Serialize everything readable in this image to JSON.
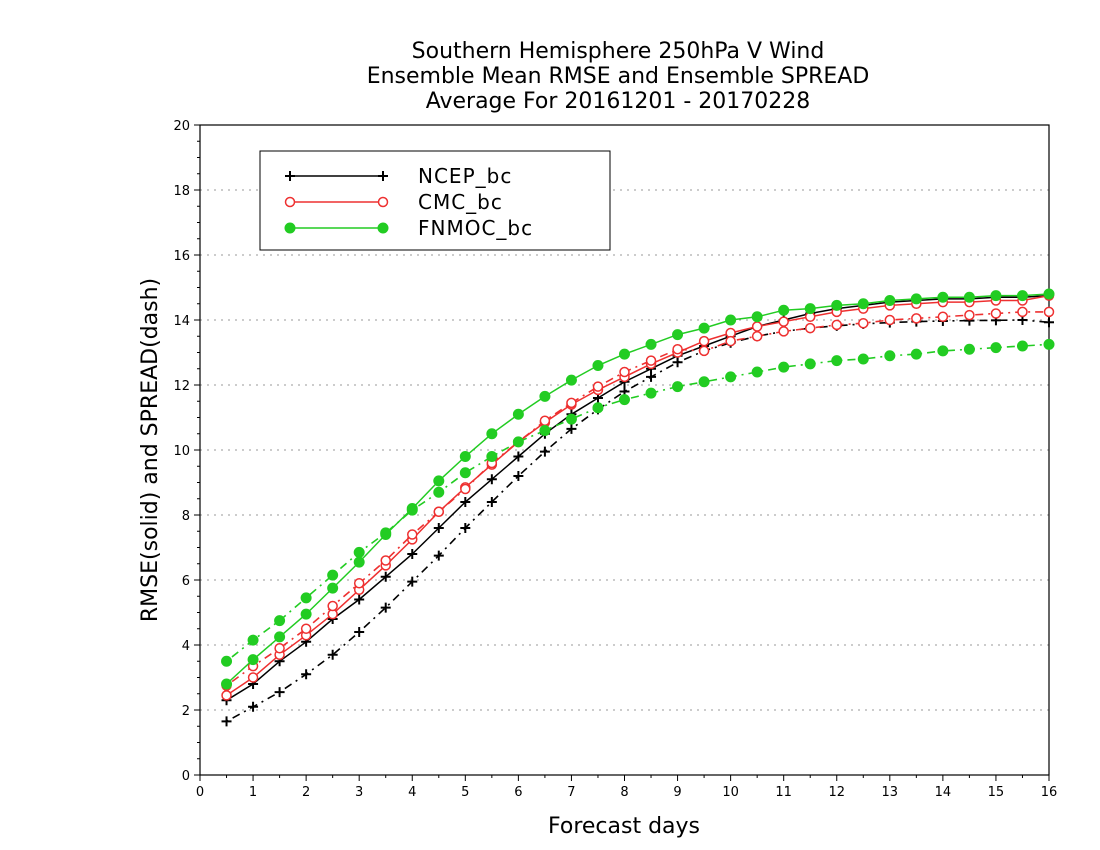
{
  "chart_data": {
    "type": "line",
    "title": [
      "Southern Hemisphere 250hPa V Wind",
      "Ensemble Mean RMSE and Ensemble SPREAD",
      "Average For 20161201 - 20170228"
    ],
    "xlabel": "Forecast days",
    "ylabel": "RMSE(solid) and SPREAD(dash)",
    "xlim": [
      0,
      16
    ],
    "ylim": [
      0,
      20
    ],
    "xticks": [
      "0",
      "1",
      "2",
      "3",
      "4",
      "5",
      "6",
      "7",
      "8",
      "9",
      "10",
      "11",
      "12",
      "13",
      "14",
      "15",
      "16"
    ],
    "yticks": [
      "0",
      "2",
      "4",
      "6",
      "8",
      "10",
      "12",
      "14",
      "16",
      "18",
      "20"
    ],
    "grid": "horizontal dotted",
    "legend_position": "top-left",
    "x": [
      0.5,
      1,
      1.5,
      2,
      2.5,
      3,
      3.5,
      4,
      4.5,
      5,
      5.5,
      6,
      6.5,
      7,
      7.5,
      8,
      8.5,
      9,
      9.5,
      10,
      10.5,
      11,
      11.5,
      12,
      12.5,
      13,
      13.5,
      14,
      14.5,
      15,
      15.5,
      16
    ],
    "series": [
      {
        "name": "NCEP_bc",
        "metric": "rmse",
        "style": "solid",
        "marker": "plus",
        "color": "#000000",
        "values": [
          2.3,
          2.8,
          3.5,
          4.1,
          4.8,
          5.4,
          6.1,
          6.8,
          7.6,
          8.4,
          9.1,
          9.8,
          10.5,
          11.1,
          11.6,
          12.1,
          12.5,
          12.9,
          13.2,
          13.5,
          13.8,
          14.0,
          14.2,
          14.35,
          14.45,
          14.55,
          14.6,
          14.65,
          14.65,
          14.7,
          14.7,
          14.75
        ]
      },
      {
        "name": "NCEP_bc",
        "metric": "spread",
        "style": "dash",
        "marker": "plus",
        "color": "#000000",
        "values": [
          1.65,
          2.1,
          2.55,
          3.1,
          3.7,
          4.4,
          5.15,
          5.95,
          6.75,
          7.6,
          8.4,
          9.2,
          9.95,
          10.65,
          11.25,
          11.8,
          12.25,
          12.7,
          13.05,
          13.3,
          13.5,
          13.65,
          13.75,
          13.82,
          13.88,
          13.92,
          13.95,
          13.97,
          13.98,
          13.99,
          14.0,
          13.93
        ]
      },
      {
        "name": "CMC_bc",
        "metric": "rmse",
        "style": "solid",
        "marker": "circle-open",
        "color": "#ee3030",
        "values": [
          2.45,
          3.0,
          3.7,
          4.3,
          4.95,
          5.7,
          6.45,
          7.25,
          8.1,
          8.85,
          9.55,
          10.25,
          10.85,
          11.4,
          11.85,
          12.25,
          12.65,
          13.0,
          13.35,
          13.6,
          13.8,
          13.95,
          14.1,
          14.25,
          14.35,
          14.45,
          14.5,
          14.55,
          14.55,
          14.6,
          14.6,
          14.75
        ]
      },
      {
        "name": "CMC_bc",
        "metric": "spread",
        "style": "dash",
        "marker": "circle-open",
        "color": "#ee3030",
        "values": [
          2.75,
          3.35,
          3.9,
          4.5,
          5.2,
          5.9,
          6.6,
          7.4,
          8.1,
          8.8,
          9.6,
          10.25,
          10.9,
          11.45,
          11.95,
          12.4,
          12.75,
          13.1,
          13.05,
          13.35,
          13.5,
          13.65,
          13.75,
          13.85,
          13.9,
          14.0,
          14.05,
          14.1,
          14.15,
          14.2,
          14.25,
          14.25
        ]
      },
      {
        "name": "FNMOC_bc",
        "metric": "rmse",
        "style": "solid",
        "marker": "circle-filled",
        "color": "#22cc22",
        "values": [
          2.8,
          3.55,
          4.25,
          4.95,
          5.75,
          6.55,
          7.4,
          8.2,
          9.05,
          9.8,
          10.5,
          11.1,
          11.65,
          12.15,
          12.6,
          12.95,
          13.25,
          13.55,
          13.75,
          14.0,
          14.1,
          14.3,
          14.35,
          14.45,
          14.5,
          14.6,
          14.65,
          14.7,
          14.7,
          14.75,
          14.75,
          14.8
        ]
      },
      {
        "name": "FNMOC_bc",
        "metric": "spread",
        "style": "dash",
        "marker": "circle-filled",
        "color": "#22cc22",
        "values": [
          3.5,
          4.15,
          4.75,
          5.45,
          6.15,
          6.85,
          7.45,
          8.15,
          8.7,
          9.3,
          9.8,
          10.25,
          10.6,
          10.95,
          11.3,
          11.55,
          11.75,
          11.95,
          12.1,
          12.25,
          12.4,
          12.55,
          12.65,
          12.75,
          12.8,
          12.9,
          12.95,
          13.05,
          13.1,
          13.15,
          13.2,
          13.25
        ]
      }
    ],
    "legend": [
      {
        "label": "NCEP_bc",
        "color": "#000000",
        "marker": "plus"
      },
      {
        "label": "CMC_bc",
        "color": "#ee3030",
        "marker": "circle-open"
      },
      {
        "label": "FNMOC_bc",
        "color": "#22cc22",
        "marker": "circle-filled"
      }
    ]
  }
}
